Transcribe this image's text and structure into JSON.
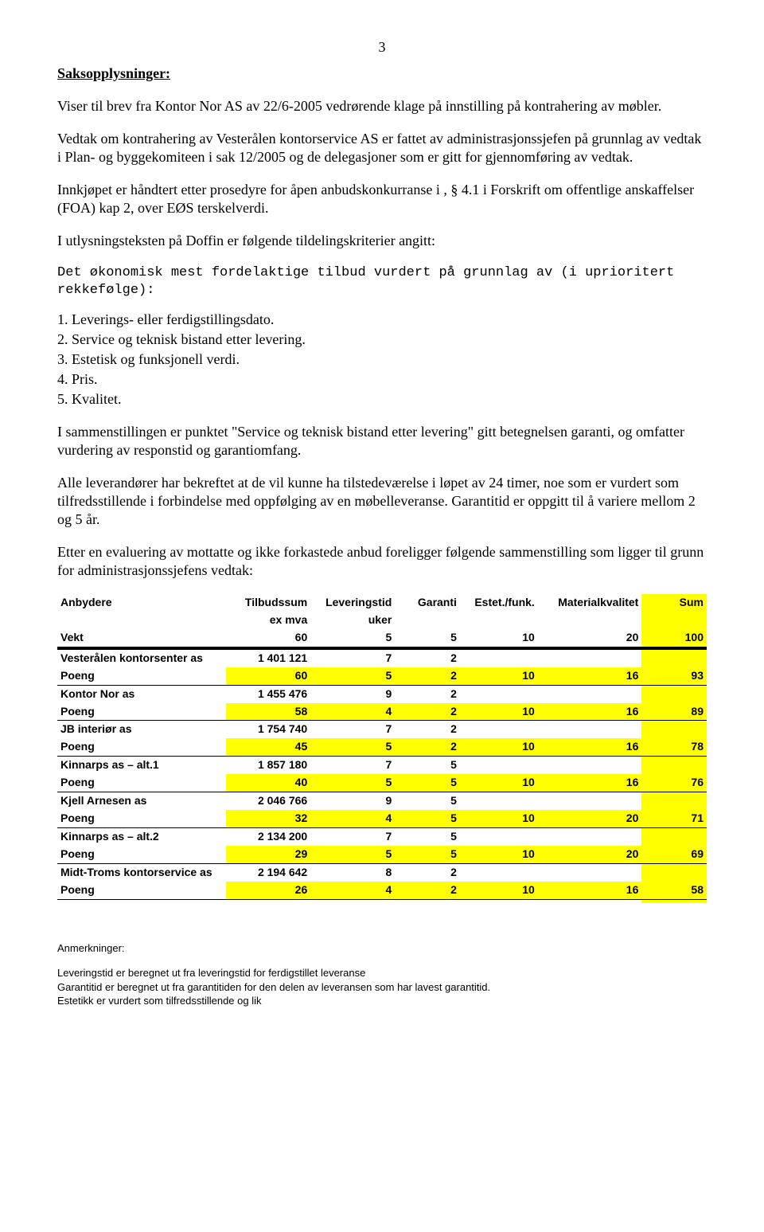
{
  "page_number": "3",
  "heading": "Saksopplysninger:",
  "para1": "Viser til brev fra Kontor Nor AS av 22/6-2005 vedrørende klage på innstilling på kontrahering av møbler.",
  "para2": "Vedtak om kontrahering av Vesterålen kontorservice AS er fattet av administrasjonssjefen på grunnlag av vedtak i Plan- og byggekomiteen i sak 12/2005 og de delegasjoner som er gitt for gjennomføring av vedtak.",
  "para3": "Innkjøpet er håndtert etter prosedyre for åpen anbudskonkurranse i , § 4.1 i Forskrift om offentlige anskaffelser (FOA) kap 2, over EØS terskelverdi.",
  "para4": "I utlysningsteksten på Doffin er følgende tildelingskriterier angitt:",
  "mono": "Det økonomisk mest fordelaktige tilbud vurdert på grunnlag av (i uprioritert rekkefølge):",
  "list": {
    "l1": "1. Leverings- eller ferdigstillingsdato.",
    "l2": "2. Service og teknisk bistand etter levering.",
    "l3": "3. Estetisk og funksjonell verdi.",
    "l4": "4. Pris.",
    "l5": "5. Kvalitet."
  },
  "para5": "I sammenstillingen er punktet \"Service og teknisk bistand etter levering\" gitt betegnelsen garanti, og omfatter vurdering av responstid og garantiomfang.",
  "para6": "Alle leverandører har bekreftet at de vil kunne ha tilstedeværelse i løpet av 24 timer, noe som er vurdert som tilfredsstillende i forbindelse med oppfølging av en møbelleveranse. Garantitid er oppgitt til å variere mellom 2 og 5 år.",
  "para7": "Etter en evaluering av mottatte og ikke forkastede anbud foreligger følgende sammenstilling som ligger til grunn for administrasjonssjefens vedtak:",
  "table": {
    "headers": {
      "anbydere": "Anbydere",
      "tilbudssum": "Tilbudssum",
      "ex_mva": "ex mva",
      "leveringstid": "Leveringstid",
      "uker": "uker",
      "garanti": "Garanti",
      "estet": "Estet./funk.",
      "material": "Materialkvalitet",
      "sum": "Sum",
      "vekt": "Vekt",
      "w1": "60",
      "w2": "5",
      "w3": "5",
      "w4": "10",
      "w5": "20",
      "w6": "100"
    },
    "poeng_label": "Poeng",
    "rows": [
      {
        "name": "Vesterålen kontorsenter as",
        "tilbud": "1 401 121",
        "lev": "7",
        "gar": "2",
        "p_tilbud": "60",
        "p_lev": "5",
        "p_gar": "2",
        "p_est": "10",
        "p_mat": "16",
        "p_sum": "93"
      },
      {
        "name": "Kontor Nor as",
        "tilbud": "1 455 476",
        "lev": "9",
        "gar": "2",
        "p_tilbud": "58",
        "p_lev": "4",
        "p_gar": "2",
        "p_est": "10",
        "p_mat": "16",
        "p_sum": "89"
      },
      {
        "name": "JB interiør as",
        "tilbud": "1 754 740",
        "lev": "7",
        "gar": "2",
        "p_tilbud": "45",
        "p_lev": "5",
        "p_gar": "2",
        "p_est": "10",
        "p_mat": "16",
        "p_sum": "78"
      },
      {
        "name": "Kinnarps as – alt.1",
        "tilbud": "1 857 180",
        "lev": "7",
        "gar": "5",
        "p_tilbud": "40",
        "p_lev": "5",
        "p_gar": "5",
        "p_est": "10",
        "p_mat": "16",
        "p_sum": "76"
      },
      {
        "name": "Kjell Arnesen as",
        "tilbud": "2 046 766",
        "lev": "9",
        "gar": "5",
        "p_tilbud": "32",
        "p_lev": "4",
        "p_gar": "5",
        "p_est": "10",
        "p_mat": "20",
        "p_sum": "71"
      },
      {
        "name": "Kinnarps as – alt.2",
        "tilbud": "2 134 200",
        "lev": "7",
        "gar": "5",
        "p_tilbud": "29",
        "p_lev": "5",
        "p_gar": "5",
        "p_est": "10",
        "p_mat": "20",
        "p_sum": "69"
      },
      {
        "name": "Midt-Troms kontorservice as",
        "tilbud": "2 194 642",
        "lev": "8",
        "gar": "2",
        "p_tilbud": "26",
        "p_lev": "4",
        "p_gar": "2",
        "p_est": "10",
        "p_mat": "16",
        "p_sum": "58"
      }
    ]
  },
  "notes": {
    "title": "Anmerkninger:",
    "n1": "Leveringstid er beregnet ut fra leveringstid for ferdigstillet leveranse",
    "n2": "Garantitid er beregnet ut fra garantitiden for den delen av leveransen som har lavest garantitid.",
    "n3": "Estetikk er vurdert som tilfredsstillende og lik"
  }
}
